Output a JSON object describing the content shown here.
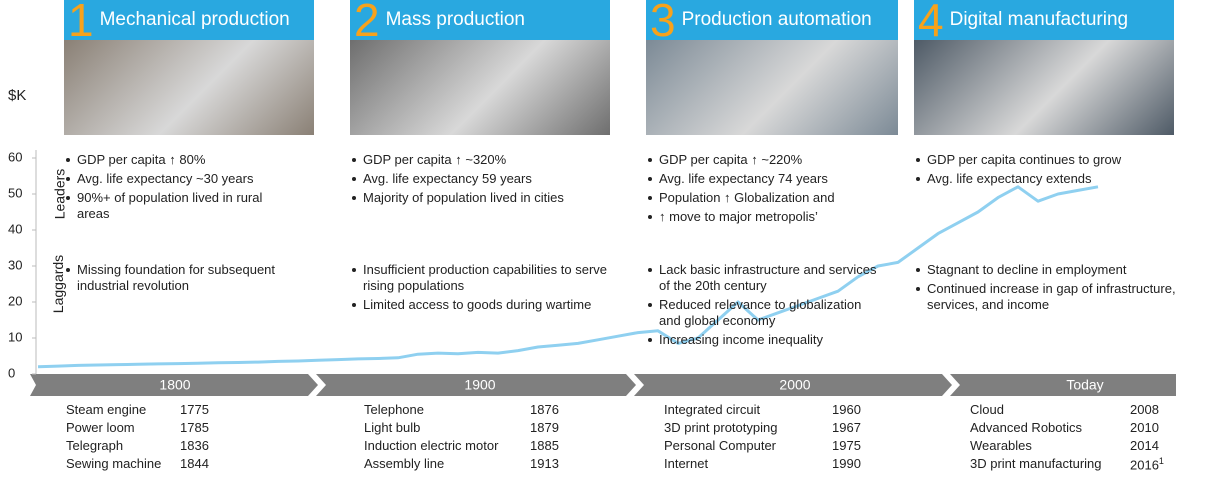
{
  "chart_data": {
    "type": "line",
    "ylabel": "$K",
    "ylim": [
      0,
      60
    ],
    "yticks": [
      0,
      10,
      20,
      30,
      40,
      50,
      60
    ],
    "color": "#8fd0f0",
    "values": [
      2,
      2.2,
      2.4,
      2.5,
      2.6,
      2.7,
      2.8,
      2.9,
      3,
      3.1,
      3.2,
      3.3,
      3.5,
      3.6,
      3.8,
      4,
      4.2,
      4.3,
      4.5,
      5.5,
      5.8,
      5.6,
      6,
      5.8,
      6.5,
      7.5,
      8,
      8.5,
      9.5,
      10.5,
      11.5,
      12,
      8.5,
      10,
      15,
      20,
      15,
      17,
      19,
      21,
      23,
      27,
      30,
      31,
      35,
      39,
      42,
      45,
      49,
      52,
      48,
      50,
      51,
      52
    ]
  },
  "row_labels": [
    "Leaders",
    "Laggards"
  ],
  "eras": [
    {
      "number": "1",
      "title": "Mechanical production",
      "period": "1800",
      "leaders": [
        "GDP per capita ↑ 80%",
        "Avg. life expectancy ~30 years",
        "90%+ of population lived in rural areas"
      ],
      "laggards": [
        "Missing foundation for subsequent industrial revolution"
      ],
      "inventions": [
        {
          "name": "Steam engine",
          "year": "1775"
        },
        {
          "name": "Power loom",
          "year": "1785"
        },
        {
          "name": "Telegraph",
          "year": "1836"
        },
        {
          "name": "Sewing machine",
          "year": "1844"
        }
      ]
    },
    {
      "number": "2",
      "title": "Mass production",
      "period": "1900",
      "leaders": [
        "GDP per capita ↑ ~320%",
        "Avg. life expectancy 59 years",
        "Majority of population lived in cities"
      ],
      "laggards": [
        "Insufficient production capabilities to serve rising populations",
        "Limited access to goods during wartime"
      ],
      "inventions": [
        {
          "name": "Telephone",
          "year": "1876"
        },
        {
          "name": "Light bulb",
          "year": "1879"
        },
        {
          "name": "Induction electric motor",
          "year": "1885"
        },
        {
          "name": "Assembly line",
          "year": "1913"
        }
      ]
    },
    {
      "number": "3",
      "title": "Production automation",
      "period": "2000",
      "leaders": [
        "GDP per capita ↑ ~220%",
        "Avg. life expectancy 74 years",
        "Population ↑ Globalization and",
        "↑ move to major metropolis’"
      ],
      "laggards": [
        "Lack basic infrastructure and services of the 20th century",
        "Reduced relevance to globalization and global economy",
        "Increasing income inequality"
      ],
      "inventions": [
        {
          "name": "Integrated circuit",
          "year": "1960"
        },
        {
          "name": "3D print prototyping",
          "year": "1967"
        },
        {
          "name": "Personal Computer",
          "year": "1975"
        },
        {
          "name": "Internet",
          "year": "1990"
        }
      ]
    },
    {
      "number": "4",
      "title": "Digital manufacturing",
      "period": "Today",
      "leaders": [
        "GDP per capita continues to grow",
        "Avg. life expectancy extends"
      ],
      "laggards": [
        "Stagnant to decline in employment",
        "Continued increase in gap of infrastructure, services, and income"
      ],
      "inventions": [
        {
          "name": "Cloud",
          "year": "2008"
        },
        {
          "name": "Advanced Robotics",
          "year": "2010"
        },
        {
          "name": "Wearables",
          "year": "2014"
        },
        {
          "name": "3D print manufacturing",
          "year": "2016",
          "note": "1"
        }
      ]
    }
  ]
}
